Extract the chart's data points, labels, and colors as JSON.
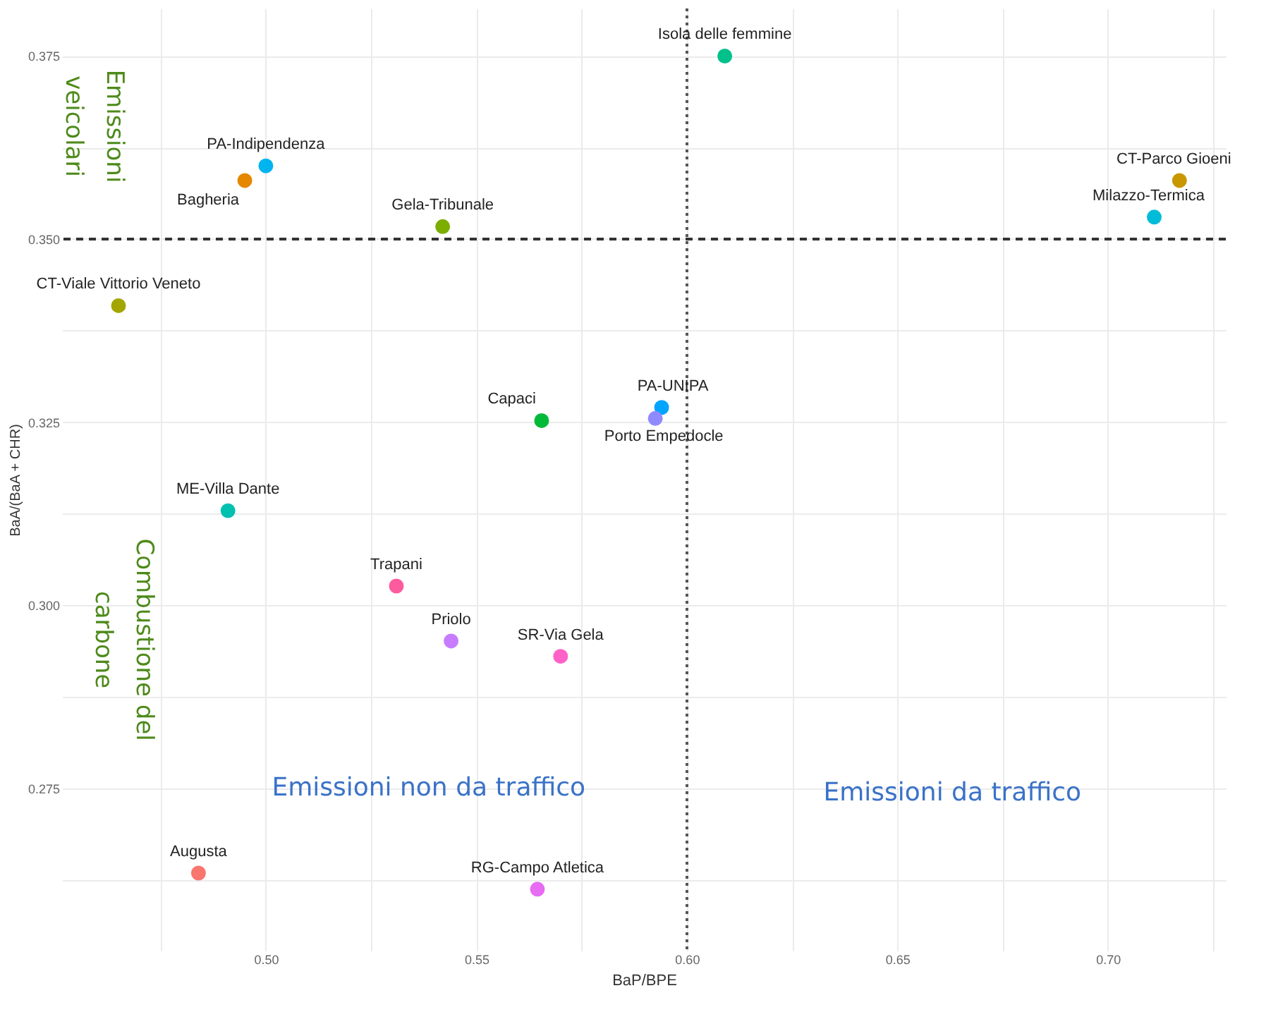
{
  "chart_data": {
    "type": "scatter",
    "xlabel": "BaP/BPE",
    "ylabel": "BaA/(BaA + CHR)",
    "xlim": [
      0.4516,
      0.728
    ],
    "ylim": [
      0.2528,
      0.3815
    ],
    "xticks": [
      {
        "value": 0.475,
        "label": null
      },
      {
        "value": 0.5,
        "label": "0.50"
      },
      {
        "value": 0.525,
        "label": null
      },
      0.55,
      {
        "value": 0.575,
        "label": null
      },
      {
        "value": 0.6,
        "label": "0.60"
      },
      {
        "value": 0.625,
        "label": null
      },
      0.65,
      {
        "value": 0.675,
        "label": null
      },
      {
        "value": 0.7,
        "label": "0.70"
      },
      {
        "value": 0.725,
        "label": null
      }
    ],
    "yticks": [
      {
        "value": 0.2625,
        "label": null
      },
      0.275,
      {
        "value": 0.2875,
        "label": null
      },
      {
        "value": 0.3,
        "label": "0.300"
      },
      {
        "value": 0.3125,
        "label": null
      },
      0.325,
      {
        "value": 0.3375,
        "label": null
      },
      {
        "value": 0.35,
        "label": "0.350"
      },
      {
        "value": 0.3625,
        "label": null
      },
      0.375
    ],
    "grid": true,
    "legend": false,
    "marker": "circle",
    "ref_lines": [
      {
        "axis": "y",
        "value": 0.35,
        "line_style": "dashed",
        "color": "#333333"
      },
      {
        "axis": "x",
        "value": 0.6,
        "line_style": "dotted",
        "color": "#555555"
      }
    ],
    "annotations": [
      "Emissioni\nveicolari",
      "Combustione del\ncarbone",
      "Emissioni non da traffico",
      "Emissioni da traffico"
    ],
    "series": [
      {
        "name": "Isola delle femmine",
        "color": "#00c08b",
        "x": [
          0.609
        ],
        "values": [
          0.375
        ]
      },
      {
        "name": "PA-Indipendenza",
        "color": "#00b4f0",
        "x": [
          0.5
        ],
        "values": [
          0.36
        ]
      },
      {
        "name": "Bagheria",
        "color": "#e58700",
        "x": [
          0.495
        ],
        "values": [
          0.358
        ]
      },
      {
        "name": "Gela-Tribunale",
        "color": "#7cae00",
        "x": [
          0.542
        ],
        "values": [
          0.3517
        ]
      },
      {
        "name": "CT-Viale Vittorio Veneto",
        "color": "#a3a500",
        "x": [
          0.465
        ],
        "values": [
          0.3409
        ]
      },
      {
        "name": "CT-Parco Gioeni",
        "color": "#c99800",
        "x": [
          0.717
        ],
        "values": [
          0.358
        ]
      },
      {
        "name": "Milazzo-Termica",
        "color": "#00bcd8",
        "x": [
          0.711
        ],
        "values": [
          0.353
        ]
      },
      {
        "name": "Capaci",
        "color": "#00ba38",
        "x": [
          0.5655
        ],
        "values": [
          0.3252
        ]
      },
      {
        "name": "PA-UNIPA",
        "color": "#00a5ff",
        "x": [
          0.594
        ],
        "values": [
          0.327
        ]
      },
      {
        "name": "Porto Empedocle",
        "color": "#8f8bff",
        "x": [
          0.5925
        ],
        "values": [
          0.3255
        ]
      },
      {
        "name": "ME-Villa Dante",
        "color": "#00c0b0",
        "x": [
          0.491
        ],
        "values": [
          0.3129
        ]
      },
      {
        "name": "Trapani",
        "color": "#fc5c9e",
        "x": [
          0.531
        ],
        "values": [
          0.3026
        ]
      },
      {
        "name": "Priolo",
        "color": "#c77cff",
        "x": [
          0.544
        ],
        "values": [
          0.2951
        ]
      },
      {
        "name": "SR-Via Gela",
        "color": "#ff61c9",
        "x": [
          0.57
        ],
        "values": [
          0.293
        ]
      },
      {
        "name": "Augusta",
        "color": "#f8766d",
        "x": [
          0.484
        ],
        "values": [
          0.2634
        ]
      },
      {
        "name": "RG-Campo Atletica",
        "color": "#e76bf3",
        "x": [
          0.5645
        ],
        "values": [
          0.2612
        ]
      }
    ]
  }
}
